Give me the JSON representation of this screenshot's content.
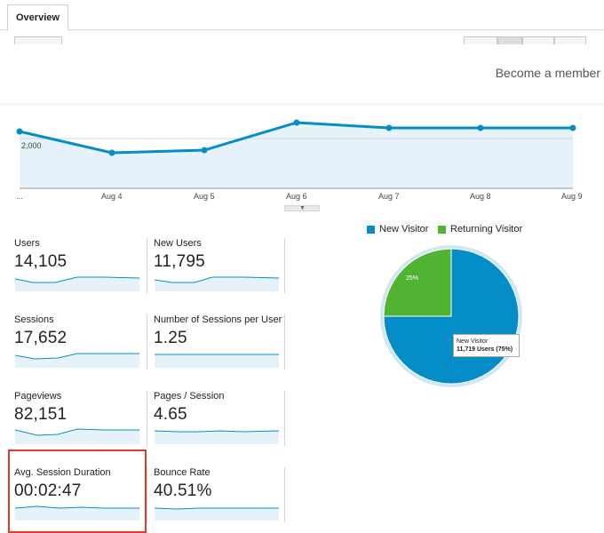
{
  "tabs": {
    "overview_label": "Overview"
  },
  "banner": {
    "link_text": "Become a member"
  },
  "line_chart": {
    "y_tick_label": "2,000",
    "x_labels": [
      "...",
      "Aug 4",
      "Aug 5",
      "Aug 6",
      "Aug 7",
      "Aug 8",
      "Aug 9"
    ]
  },
  "metrics": {
    "users": {
      "label": "Users",
      "value": "14,105"
    },
    "new_users": {
      "label": "New Users",
      "value": "11,795"
    },
    "sessions": {
      "label": "Sessions",
      "value": "17,652"
    },
    "sessions_per_user": {
      "label": "Number of Sessions per User",
      "value": "1.25"
    },
    "pageviews": {
      "label": "Pageviews",
      "value": "82,151"
    },
    "pages_per_session": {
      "label": "Pages / Session",
      "value": "4.65"
    },
    "avg_session_duration": {
      "label": "Avg. Session Duration",
      "value": "00:02:47"
    },
    "bounce_rate": {
      "label": "Bounce Rate",
      "value": "40.51%"
    }
  },
  "pie": {
    "legend": [
      {
        "label": "New Visitor",
        "color": "#058dc7"
      },
      {
        "label": "Returning Visitor",
        "color": "#50b432"
      }
    ],
    "returning_pct_label": "25%",
    "tooltip_title": "New Visitor",
    "tooltip_value": "11,719 Users (75%)",
    "new_visitor_share": 0.75,
    "returning_visitor_share": 0.25
  },
  "colors": {
    "line": "#058dc7",
    "area": "#e6f2f9",
    "new_visitor": "#058dc7",
    "returning_visitor": "#50b432",
    "highlight_border": "#e03a2f"
  }
}
